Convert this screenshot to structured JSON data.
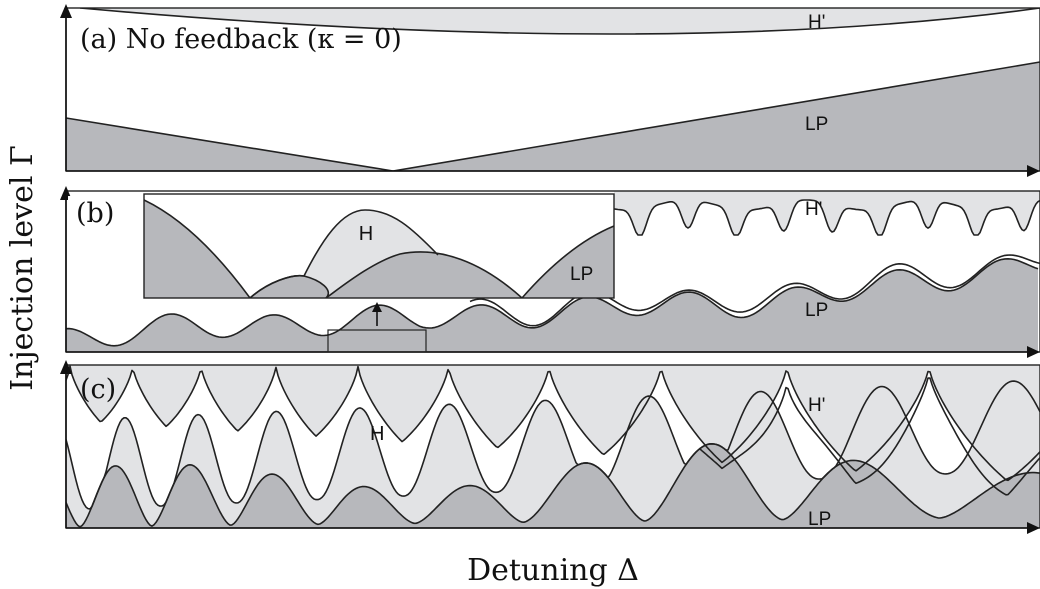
{
  "figure": {
    "y_axis_label": "Injection level Γ",
    "x_axis_label": "Detuning Δ",
    "colors": {
      "lp_fill": "#b7b8bc",
      "h_fill": "#e2e3e5",
      "line": "#222222",
      "background": "#ffffff"
    }
  },
  "panels": [
    {
      "id": "a",
      "label": "(a) No feedback (κ = 0)",
      "regions": {
        "upper": "H'",
        "lower": "LP"
      }
    },
    {
      "id": "b",
      "label": "(b)",
      "regions": {
        "upper": "H'",
        "lower": "LP"
      },
      "inset": {
        "labels": {
          "middle": "H",
          "lower": "LP"
        }
      }
    },
    {
      "id": "c",
      "label": "(c)",
      "regions": {
        "upper": "H'",
        "middle": "H",
        "lower": "LP"
      }
    }
  ]
}
